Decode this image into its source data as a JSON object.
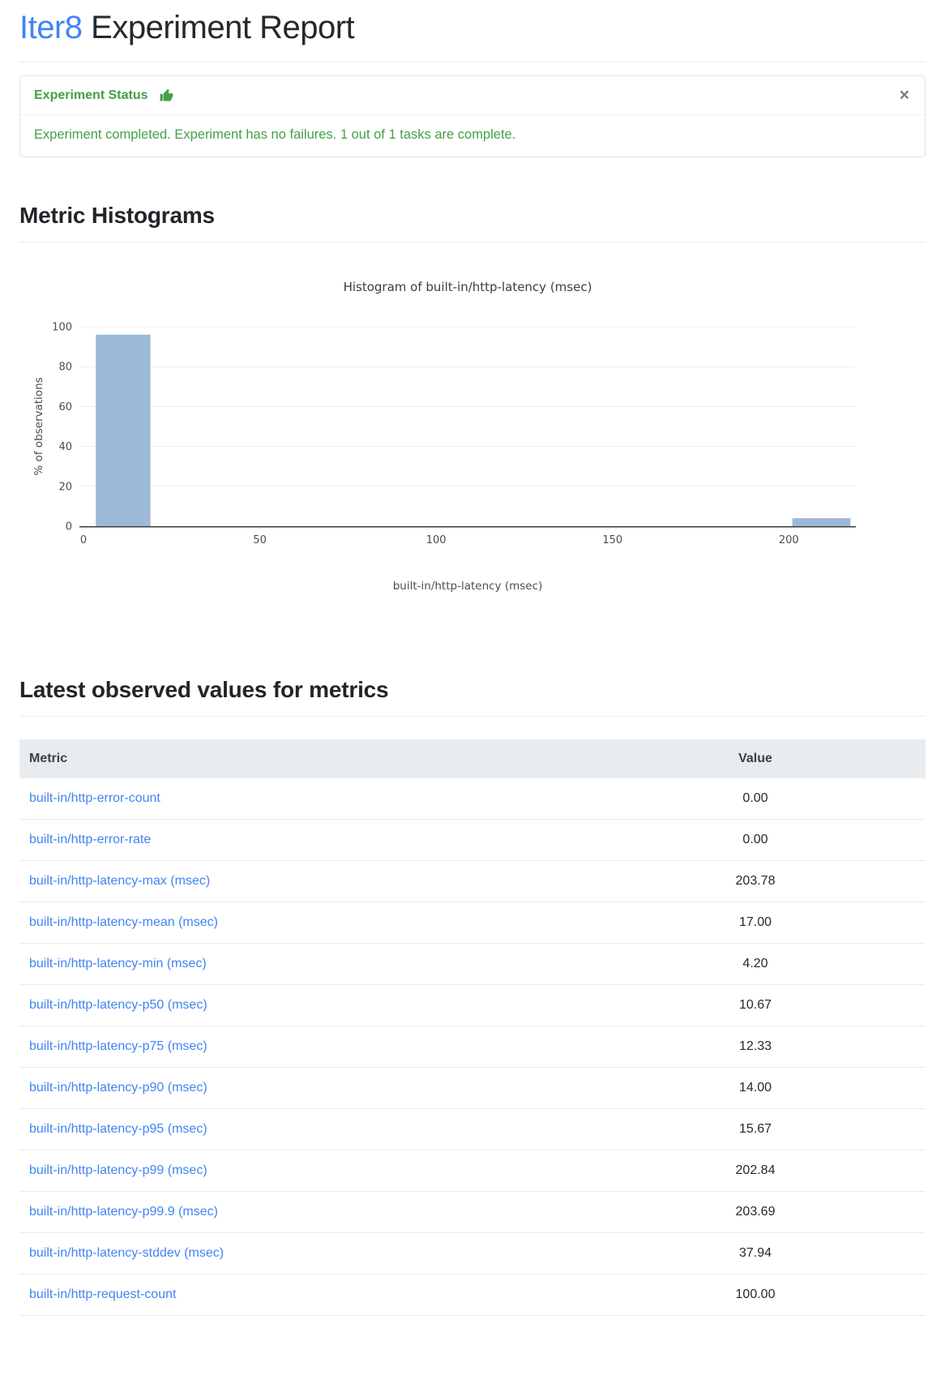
{
  "page": {
    "title_accent": "Iter8",
    "title_rest": " Experiment Report"
  },
  "colors": {
    "accent_blue": "#4184f3",
    "status_green": "#43a047",
    "bar_fill": "#9cbad8"
  },
  "status_card": {
    "header_label": "Experiment Status",
    "icon": "thumbs-up-icon",
    "close_glyph": "×",
    "message": "Experiment completed. Experiment has no failures. 1 out of 1 tasks are complete."
  },
  "sections": {
    "histograms_heading": "Metric Histograms",
    "latest_values_heading": "Latest observed values for metrics"
  },
  "chart_data": {
    "type": "bar",
    "title": "Histogram of built-in/http-latency (msec)",
    "xlabel": "built-in/http-latency (msec)",
    "ylabel": "% of observations",
    "xlim": [
      0,
      219
    ],
    "ylim": [
      0,
      100
    ],
    "x_ticks": [
      0,
      50,
      100,
      150,
      200
    ],
    "y_ticks": [
      0,
      20,
      40,
      60,
      80,
      100
    ],
    "grid": true,
    "legend": "none",
    "bar_color": "#9cbad8",
    "bins": [
      {
        "x0": 3.5,
        "x1": 19.0,
        "percent": 96
      },
      {
        "x0": 201.0,
        "x1": 217.5,
        "percent": 4
      }
    ]
  },
  "table": {
    "columns": [
      "Metric",
      "Value"
    ],
    "rows": [
      {
        "metric": "built-in/http-error-count",
        "value": "0.00"
      },
      {
        "metric": "built-in/http-error-rate",
        "value": "0.00"
      },
      {
        "metric": "built-in/http-latency-max (msec)",
        "value": "203.78"
      },
      {
        "metric": "built-in/http-latency-mean (msec)",
        "value": "17.00"
      },
      {
        "metric": "built-in/http-latency-min (msec)",
        "value": "4.20"
      },
      {
        "metric": "built-in/http-latency-p50 (msec)",
        "value": "10.67"
      },
      {
        "metric": "built-in/http-latency-p75 (msec)",
        "value": "12.33"
      },
      {
        "metric": "built-in/http-latency-p90 (msec)",
        "value": "14.00"
      },
      {
        "metric": "built-in/http-latency-p95 (msec)",
        "value": "15.67"
      },
      {
        "metric": "built-in/http-latency-p99 (msec)",
        "value": "202.84"
      },
      {
        "metric": "built-in/http-latency-p99.9 (msec)",
        "value": "203.69"
      },
      {
        "metric": "built-in/http-latency-stddev (msec)",
        "value": "37.94"
      },
      {
        "metric": "built-in/http-request-count",
        "value": "100.00"
      }
    ]
  }
}
